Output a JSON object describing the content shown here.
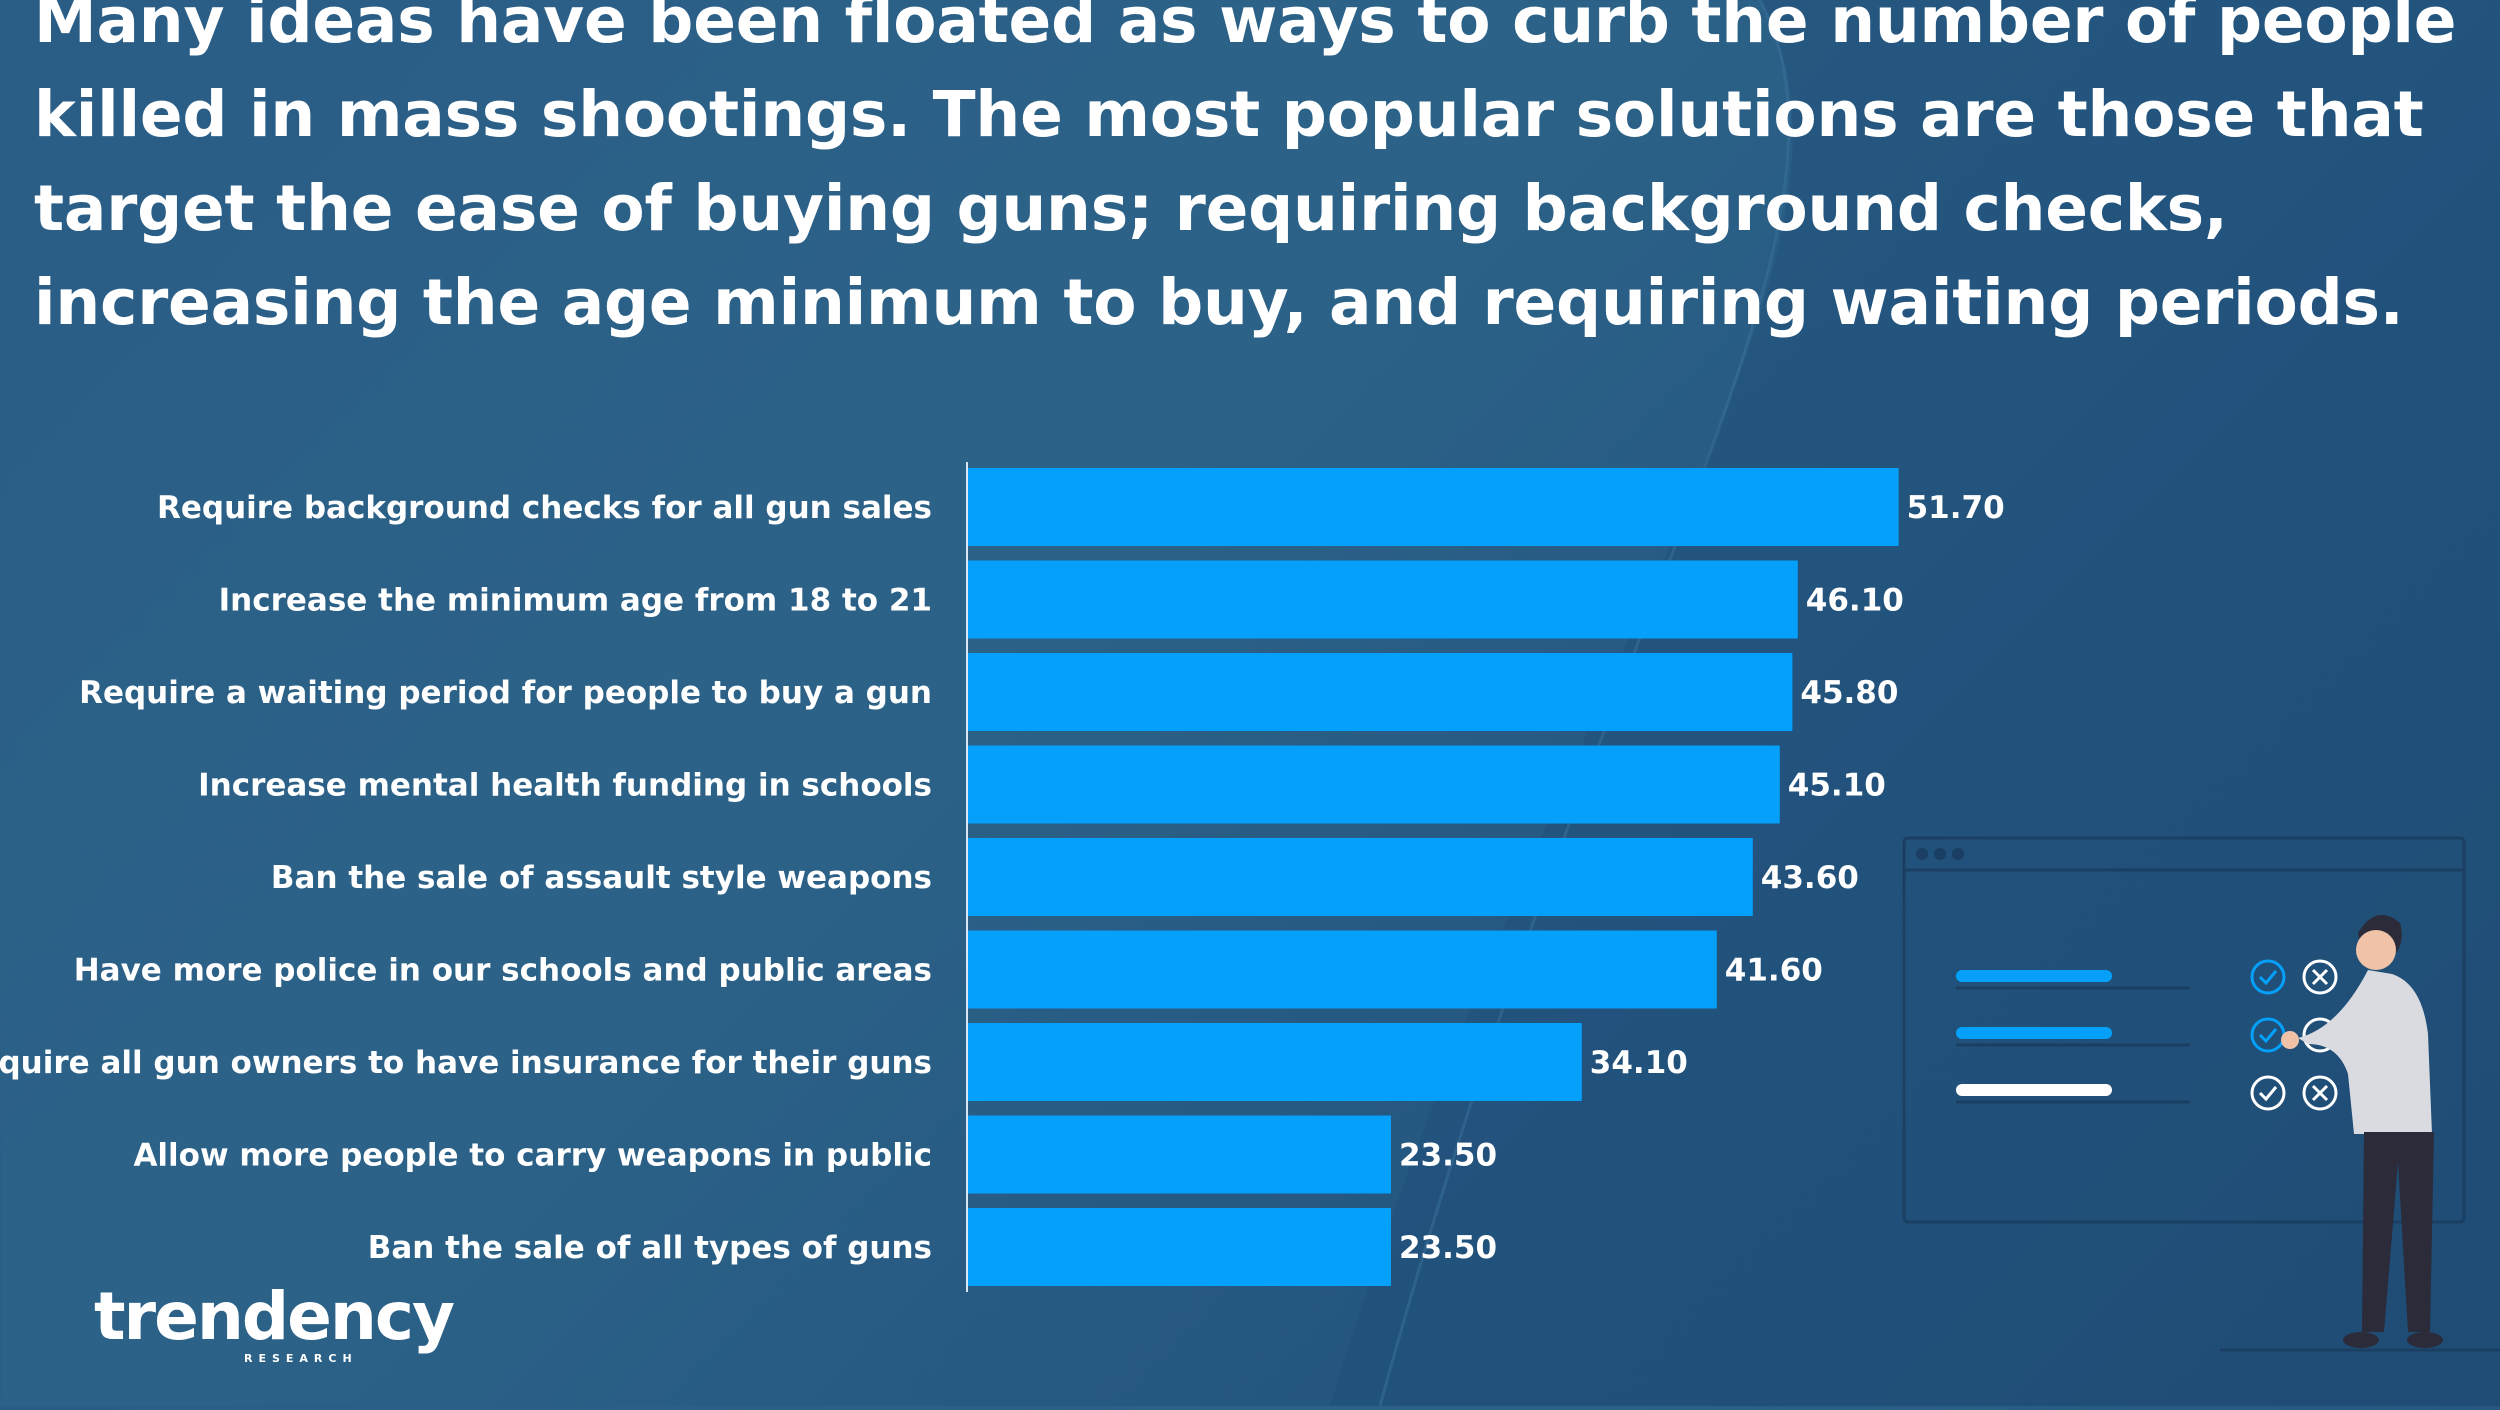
{
  "headline": "Many ideas have been floated as ways to curb the number of people killed in mass shootings. The most popular solutions are those that target the ease of buying guns; requiring background checks, increasing the age minimum to buy, and requiring waiting periods.",
  "logo": {
    "name": "trendency",
    "sub": "RESEARCH"
  },
  "colors": {
    "bar": "#04a0fa",
    "background": "#2a5d86",
    "text": "#ffffff"
  },
  "chart_data": {
    "type": "bar",
    "orientation": "horizontal",
    "categories": [
      "Require background checks for all gun sales",
      "Increase the minimum age from 18 to 21",
      "Require a waiting period for people to buy a gun",
      "Increase mental health funding in schools",
      "Ban the sale of assault style weapons",
      "Have more police in our schools and public areas",
      "Require all gun owners to have insurance for their guns",
      "Allow more people to carry weapons in public",
      "Ban the sale of all types of guns"
    ],
    "values": [
      51.7,
      46.1,
      45.8,
      45.1,
      43.6,
      41.6,
      34.1,
      23.5,
      23.5
    ],
    "value_labels": [
      "51.70",
      "46.10",
      "45.80",
      "45.10",
      "43.60",
      "41.60",
      "34.10",
      "23.50",
      "23.50"
    ],
    "xlim": [
      0,
      100
    ],
    "grid": false,
    "legend": "none"
  },
  "illustration": {
    "icons": [
      "check-icon",
      "x-icon"
    ]
  }
}
